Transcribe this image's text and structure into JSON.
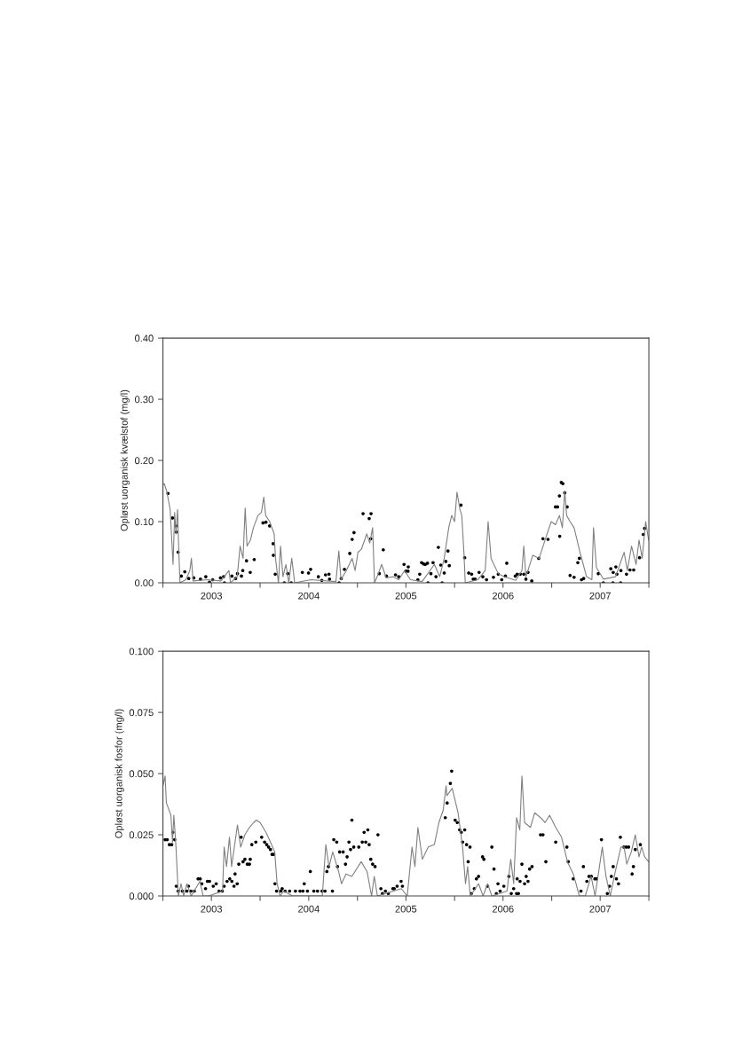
{
  "chart_data": [
    {
      "type": "line",
      "ylabel": "Opløst uorganisk kvælstof (mg/l)",
      "xlim": [
        "2003-01-01",
        "2008-01-01"
      ],
      "xticks": [
        {
          "value": "2003-01-01",
          "label": null
        },
        {
          "value": "2003-07-02",
          "label": "2003"
        },
        {
          "value": "2004-01-01",
          "label": null
        },
        {
          "value": "2004-07-02",
          "label": "2004"
        },
        {
          "value": "2005-01-01",
          "label": null
        },
        {
          "value": "2005-07-02",
          "label": "2005"
        },
        {
          "value": "2006-01-01",
          "label": null
        },
        {
          "value": "2006-07-02",
          "label": "2006"
        },
        {
          "value": "2007-01-01",
          "label": null
        },
        {
          "value": "2007-07-02",
          "label": "2007"
        },
        {
          "value": "2008-01-01",
          "label": null
        }
      ],
      "ylim": [
        0,
        0.4
      ],
      "yticks": [
        {
          "value": 0,
          "label": "0.00"
        },
        {
          "value": 0.1,
          "label": "0.10"
        },
        {
          "value": 0.2,
          "label": "0.20"
        },
        {
          "value": 0.3,
          "label": "0.30"
        },
        {
          "value": 0.4,
          "label": "0.40"
        }
      ],
      "grid": false,
      "legend": false,
      "series": [
        {
          "type": "line",
          "color": "#808080",
          "marker": "none",
          "line_style": "solid",
          "x": [
            "2003-01-01",
            "2003-01-06",
            "2003-01-15",
            "2003-01-28",
            "2003-02-08",
            "2003-02-14",
            "2003-02-19",
            "2003-02-25",
            "2003-03-01",
            "2003-03-06",
            "2003-03-28",
            "2003-04-12",
            "2003-04-18",
            "2003-04-24",
            "2003-06-18",
            "2003-08-07",
            "2003-09-06",
            "2003-09-12",
            "2003-10-07",
            "2003-10-18",
            "2003-10-29",
            "2003-11-06",
            "2003-11-13",
            "2003-11-26",
            "2003-12-07",
            "2003-12-24",
            "2004-01-06",
            "2004-01-15",
            "2004-01-22",
            "2004-02-06",
            "2004-02-23",
            "2004-02-28",
            "2004-03-10",
            "2004-03-18",
            "2004-03-27",
            "2004-04-07",
            "2004-04-18",
            "2004-04-29",
            "2004-05-10",
            "2004-07-10",
            "2004-10-12",
            "2004-10-23",
            "2004-10-31",
            "2004-11-20",
            "2004-12-12",
            "2004-12-23",
            "2005-01-03",
            "2005-01-16",
            "2005-02-05",
            "2005-02-16",
            "2005-02-27",
            "2005-03-06",
            "2005-03-16",
            "2005-04-02",
            "2005-04-19",
            "2005-05-14",
            "2005-06-05",
            "2005-06-27",
            "2005-07-19",
            "2005-09-01",
            "2005-10-17",
            "2005-11-06",
            "2005-11-23",
            "2005-12-10",
            "2005-12-21",
            "2006-01-01",
            "2006-01-10",
            "2006-01-21",
            "2006-01-28",
            "2006-02-05",
            "2006-02-10",
            "2006-03-29",
            "2006-04-26",
            "2006-05-07",
            "2006-05-18",
            "2006-06-14",
            "2006-07-06",
            "2006-08-19",
            "2006-09-11",
            "2006-09-18",
            "2006-09-26",
            "2006-10-22",
            "2006-11-15",
            "2006-12-07",
            "2006-12-30",
            "2007-01-15",
            "2007-01-30",
            "2007-02-10",
            "2007-02-19",
            "2007-02-26",
            "2007-03-11",
            "2007-03-26",
            "2007-04-17",
            "2007-05-12",
            "2007-06-01",
            "2007-06-07",
            "2007-06-18",
            "2007-07-14",
            "2007-08-29",
            "2007-09-30",
            "2007-10-12",
            "2007-10-28",
            "2007-11-14",
            "2007-11-25",
            "2007-12-07",
            "2007-12-20",
            "2007-12-31"
          ],
          "values": [
            0.16,
            0.162,
            0.15,
            0.12,
            0.03,
            0.115,
            0.08,
            0.12,
            0.06,
            0.0,
            0.005,
            0.02,
            0.04,
            0.003,
            0.005,
            0.003,
            0.02,
            0.0,
            0.01,
            0.06,
            0.04,
            0.122,
            0.06,
            0.07,
            0.09,
            0.11,
            0.115,
            0.14,
            0.11,
            0.1,
            0.08,
            0.04,
            0.0,
            0.06,
            0.01,
            0.03,
            0.0,
            0.04,
            0.0,
            0.005,
            0.002,
            0.052,
            0.005,
            0.02,
            0.04,
            0.02,
            0.05,
            0.055,
            0.08,
            0.065,
            0.09,
            0.0,
            0.01,
            0.03,
            0.008,
            0.01,
            0.005,
            0.02,
            0.005,
            0.002,
            0.03,
            0.01,
            0.04,
            0.09,
            0.11,
            0.1,
            0.148,
            0.12,
            0.11,
            0.05,
            0.0,
            0.005,
            0.02,
            0.1,
            0.04,
            0.015,
            0.01,
            0.004,
            0.02,
            0.06,
            0.01,
            0.045,
            0.04,
            0.07,
            0.1,
            0.095,
            0.11,
            0.09,
            0.15,
            0.11,
            0.1,
            0.09,
            0.05,
            0.01,
            0.005,
            0.09,
            0.025,
            0.006,
            0.01,
            0.05,
            0.02,
            0.06,
            0.03,
            0.07,
            0.04,
            0.1,
            0.07
          ]
        },
        {
          "type": "scatter",
          "color": "#000000",
          "marker": "circle",
          "x": [
            "2003-01-20",
            "2003-02-06",
            "2003-02-19",
            "2003-02-20",
            "2003-02-27",
            "2003-03-11",
            "2003-03-24",
            "2003-04-08",
            "2003-04-27",
            "2003-05-22",
            "2003-06-11",
            "2003-06-25",
            "2003-07-07",
            "2003-08-05",
            "2003-08-17",
            "2003-08-20",
            "2003-09-17",
            "2003-10-01",
            "2003-10-08",
            "2003-10-23",
            "2003-10-28",
            "2003-11-11",
            "2003-11-25",
            "2003-12-10",
            "2004-01-12",
            "2004-01-23",
            "2004-02-06",
            "2004-02-19",
            "2004-02-20",
            "2004-02-27",
            "2004-04-01",
            "2004-04-14",
            "2004-04-27",
            "2004-06-08",
            "2004-07-01",
            "2004-07-09",
            "2004-08-07",
            "2004-08-20",
            "2004-09-03",
            "2004-09-16",
            "2004-09-18",
            "2004-10-24",
            "2004-11-01",
            "2004-11-13",
            "2004-12-03",
            "2004-12-12",
            "2004-12-19",
            "2005-01-22",
            "2005-02-14",
            "2005-02-21",
            "2005-02-20",
            "2005-03-24",
            "2005-04-08",
            "2005-04-20",
            "2005-05-24",
            "2005-06-05",
            "2005-06-25",
            "2005-07-02",
            "2005-07-10",
            "2005-07-11",
            "2005-08-16",
            "2005-08-23",
            "2005-08-30",
            "2005-09-06",
            "2005-09-13",
            "2005-09-21",
            "2005-09-23",
            "2005-10-04",
            "2005-10-12",
            "2005-10-23",
            "2005-11-01",
            "2005-11-10",
            "2005-11-15",
            "2005-11-23",
            "2005-11-29",
            "2005-12-07",
            "2005-12-12",
            "2006-01-25",
            "2006-02-08",
            "2006-02-23",
            "2006-03-06",
            "2006-03-12",
            "2006-03-19",
            "2006-04-03",
            "2006-04-17",
            "2006-05-01",
            "2006-05-27",
            "2006-06-14",
            "2006-06-27",
            "2006-07-11",
            "2006-07-16",
            "2006-08-17",
            "2006-08-24",
            "2006-09-05",
            "2006-09-18",
            "2006-09-26",
            "2006-10-04",
            "2006-10-18",
            "2006-11-13",
            "2006-11-29",
            "2006-12-18",
            "2007-01-15",
            "2007-01-23",
            "2007-01-30",
            "2007-01-31",
            "2007-02-06",
            "2007-02-12",
            "2007-02-19",
            "2007-02-28",
            "2007-03-11",
            "2007-03-26",
            "2007-04-09",
            "2007-04-15",
            "2007-04-23",
            "2007-05-01",
            "2007-06-25",
            "2007-07-14",
            "2007-08-11",
            "2007-08-19",
            "2007-08-20",
            "2007-08-30",
            "2007-09-03",
            "2007-09-17",
            "2007-09-18",
            "2007-10-09",
            "2007-10-22",
            "2007-11-05",
            "2007-11-27",
            "2007-12-11",
            "2007-12-16"
          ],
          "values": [
            0.146,
            0.106,
            0.093,
            0.083,
            0.05,
            0.011,
            0.018,
            0.007,
            0.008,
            0.006,
            0.01,
            0.001,
            0.005,
            0.008,
            0.01,
            0.0,
            0.011,
            0.007,
            0.015,
            0.011,
            0.02,
            0.036,
            0.017,
            0.038,
            0.098,
            0.099,
            0.093,
            0.064,
            0.045,
            0.014,
            0.0,
            0.015,
            0.0,
            0.017,
            0.016,
            0.022,
            0.01,
            0.004,
            0.013,
            0.014,
            0.006,
            0.0,
            0.007,
            0.022,
            0.048,
            0.071,
            0.082,
            0.113,
            0.105,
            0.113,
            0.072,
            0.015,
            0.054,
            0.011,
            0.013,
            0.01,
            0.03,
            0.019,
            0.019,
            0.026,
            0.005,
            0.014,
            0.033,
            0.031,
            0.03,
            0.032,
            0.0,
            0.015,
            0.033,
            0.01,
            0.058,
            0.029,
            0.0,
            0.016,
            0.035,
            0.052,
            0.028,
            0.127,
            0.041,
            0.016,
            0.014,
            0.006,
            0.006,
            0.017,
            0.01,
            0.005,
            0.009,
            0.014,
            0.005,
            0.011,
            0.032,
            0.011,
            0.014,
            0.014,
            0.014,
            0.006,
            0.017,
            0.003,
            0.04,
            0.072,
            0.071,
            0.124,
            0.124,
            0.142,
            0.076,
            0.164,
            0.162,
            0.147,
            0.124,
            0.012,
            0.009,
            0.033,
            0.04,
            0.005,
            0.007,
            0.015,
            0.0,
            0.023,
            0.0,
            0.017,
            0.026,
            0.014,
            0.0,
            0.02,
            0.014,
            0.021,
            0.021,
            0.041,
            0.079,
            0.089
          ]
        }
      ]
    },
    {
      "type": "line",
      "ylabel": "Opløst uorganisk fosfor (mg/l)",
      "xlim": [
        "2003-01-01",
        "2008-01-01"
      ],
      "xticks": [
        {
          "value": "2003-01-01",
          "label": null
        },
        {
          "value": "2003-07-02",
          "label": "2003"
        },
        {
          "value": "2004-01-01",
          "label": null
        },
        {
          "value": "2004-07-02",
          "label": "2004"
        },
        {
          "value": "2005-01-01",
          "label": null
        },
        {
          "value": "2005-07-02",
          "label": "2005"
        },
        {
          "value": "2006-01-01",
          "label": null
        },
        {
          "value": "2006-07-02",
          "label": "2006"
        },
        {
          "value": "2007-01-01",
          "label": null
        },
        {
          "value": "2007-07-02",
          "label": "2007"
        },
        {
          "value": "2008-01-01",
          "label": null
        }
      ],
      "ylim": [
        0,
        0.1
      ],
      "yticks": [
        {
          "value": 0,
          "label": "0.000"
        },
        {
          "value": 0.025,
          "label": "0.025"
        },
        {
          "value": 0.05,
          "label": "0.050"
        },
        {
          "value": 0.075,
          "label": "0.075"
        },
        {
          "value": 0.1,
          "label": "0.100"
        }
      ],
      "grid": false,
      "legend": false,
      "series": [
        {
          "type": "line",
          "color": "#808080",
          "marker": "none",
          "line_style": "solid",
          "x": [
            "2003-01-01",
            "2003-01-09",
            "2003-01-14",
            "2003-01-31",
            "2003-02-06",
            "2003-02-11",
            "2003-02-19",
            "2003-02-28",
            "2003-03-10",
            "2003-03-20",
            "2003-04-01",
            "2003-04-17",
            "2003-05-20",
            "2003-06-01",
            "2003-06-22",
            "2003-08-13",
            "2003-08-19",
            "2003-08-28",
            "2003-09-08",
            "2003-09-16",
            "2003-10-08",
            "2003-10-20",
            "2003-11-05",
            "2003-11-22",
            "2003-12-08",
            "2003-12-18",
            "2004-01-01",
            "2004-01-23",
            "2004-02-09",
            "2004-02-25",
            "2004-03-05",
            "2004-03-16",
            "2004-03-30",
            "2004-05-02",
            "2004-08-22",
            "2004-09-04",
            "2004-09-16",
            "2004-09-30",
            "2004-10-22",
            "2004-11-02",
            "2004-11-19",
            "2004-12-11",
            "2005-01-15",
            "2005-02-06",
            "2005-02-23",
            "2005-03-05",
            "2005-03-17",
            "2005-06-15",
            "2005-07-07",
            "2005-07-25",
            "2005-08-05",
            "2005-08-16",
            "2005-09-02",
            "2005-09-24",
            "2005-10-17",
            "2005-11-03",
            "2005-11-19",
            "2005-11-30",
            "2005-12-03",
            "2005-12-23",
            "2006-01-03",
            "2006-01-14",
            "2006-01-31",
            "2006-02-11",
            "2006-02-19",
            "2006-03-01",
            "2006-04-01",
            "2006-04-18",
            "2006-05-05",
            "2006-05-21",
            "2006-07-17",
            "2006-07-31",
            "2006-08-11",
            "2006-08-22",
            "2006-09-03",
            "2006-09-11",
            "2006-09-21",
            "2006-10-13",
            "2006-10-29",
            "2006-11-20",
            "2006-12-07",
            "2006-12-24",
            "2007-01-16",
            "2007-02-07",
            "2007-03-01",
            "2007-03-23",
            "2007-04-15",
            "2007-05-07",
            "2007-05-29",
            "2007-06-13",
            "2007-07-10",
            "2007-07-24",
            "2007-08-09",
            "2007-08-26",
            "2007-09-18",
            "2007-09-30",
            "2007-10-10",
            "2007-10-27",
            "2007-11-11",
            "2007-11-25",
            "2007-12-05",
            "2007-12-16",
            "2007-12-31"
          ],
          "values": [
            0.045,
            0.049,
            0.038,
            0.033,
            0.022,
            0.033,
            0.02,
            0.0,
            0.005,
            0.0,
            0.005,
            0.0,
            0.006,
            0.0,
            0.0,
            0.002,
            0.02,
            0.012,
            0.024,
            0.012,
            0.029,
            0.02,
            0.025,
            0.028,
            0.03,
            0.031,
            0.03,
            0.026,
            0.022,
            0.018,
            0.005,
            0.0,
            0.002,
            0.0,
            0.0,
            0.021,
            0.012,
            0.018,
            0.01,
            0.005,
            0.009,
            0.008,
            0.014,
            0.01,
            0.0,
            0.008,
            0.0,
            0.003,
            0.0,
            0.02,
            0.012,
            0.028,
            0.015,
            0.02,
            0.021,
            0.03,
            0.035,
            0.045,
            0.041,
            0.044,
            0.039,
            0.034,
            0.02,
            0.005,
            0.012,
            0.0,
            0.005,
            0.0,
            0.005,
            0.0,
            0.002,
            0.015,
            0.005,
            0.032,
            0.027,
            0.049,
            0.03,
            0.028,
            0.034,
            0.032,
            0.03,
            0.033,
            0.028,
            0.024,
            0.014,
            0.009,
            0.0,
            0.0,
            0.008,
            0.0,
            0.02,
            0.008,
            0.0,
            0.009,
            0.02,
            0.02,
            0.013,
            0.018,
            0.025,
            0.016,
            0.02,
            0.016,
            0.014
          ]
        },
        {
          "type": "scatter",
          "color": "#000000",
          "marker": "circle",
          "x": [
            "2003-01-09",
            "2003-01-17",
            "2003-01-25",
            "2003-02-03",
            "2003-02-07",
            "2003-02-14",
            "2003-02-20",
            "2003-02-27",
            "2003-03-15",
            "2003-04-01",
            "2003-04-07",
            "2003-04-16",
            "2003-04-29",
            "2003-05-13",
            "2003-05-21",
            "2003-05-27",
            "2003-06-10",
            "2003-06-17",
            "2003-06-25",
            "2003-07-09",
            "2003-07-20",
            "2003-07-31",
            "2003-08-12",
            "2003-08-19",
            "2003-08-30",
            "2003-09-09",
            "2003-09-17",
            "2003-09-25",
            "2003-09-29",
            "2003-10-07",
            "2003-10-13",
            "2003-10-22",
            "2003-10-29",
            "2003-11-05",
            "2003-11-14",
            "2003-11-22",
            "2003-11-25",
            "2003-12-01",
            "2003-12-16",
            "2004-01-07",
            "2004-01-18",
            "2004-01-26",
            "2004-02-02",
            "2004-02-09",
            "2004-02-15",
            "2004-02-21",
            "2004-02-26",
            "2004-03-03",
            "2004-03-19",
            "2004-03-24",
            "2004-04-04",
            "2004-04-21",
            "2004-05-13",
            "2004-05-30",
            "2004-06-10",
            "2004-06-15",
            "2004-06-27",
            "2004-07-08",
            "2004-07-21",
            "2004-08-04",
            "2004-08-21",
            "2004-09-01",
            "2004-09-08",
            "2004-09-14",
            "2004-09-29",
            "2004-10-04",
            "2004-10-15",
            "2004-10-18",
            "2004-10-26",
            "2004-11-08",
            "2004-11-17",
            "2004-11-23",
            "2004-11-30",
            "2004-12-06",
            "2004-12-11",
            "2004-12-18",
            "2005-01-06",
            "2005-01-19",
            "2005-01-26",
            "2005-02-01",
            "2005-02-09",
            "2005-02-14",
            "2005-02-20",
            "2005-02-27",
            "2005-03-08",
            "2005-03-19",
            "2005-03-30",
            "2005-04-05",
            "2005-04-16",
            "2005-04-27",
            "2005-05-14",
            "2005-05-19",
            "2005-05-30",
            "2005-06-14",
            "2005-06-19",
            "2005-11-27",
            "2005-12-04",
            "2005-12-16",
            "2005-12-21",
            "2006-01-03",
            "2006-01-11",
            "2006-01-20",
            "2006-01-26",
            "2006-01-31",
            "2006-02-08",
            "2006-02-15",
            "2006-02-21",
            "2006-02-28",
            "2006-03-05",
            "2006-03-16",
            "2006-03-24",
            "2006-04-01",
            "2006-04-16",
            "2006-04-21",
            "2006-05-05",
            "2006-05-21",
            "2006-05-29",
            "2006-06-07",
            "2006-06-13",
            "2006-06-21",
            "2006-07-05",
            "2006-07-24",
            "2006-08-02",
            "2006-08-11",
            "2006-08-22",
            "2006-08-24",
            "2006-08-29",
            "2006-09-04",
            "2006-09-11",
            "2006-09-21",
            "2006-09-27",
            "2006-10-04",
            "2006-10-10",
            "2006-10-19",
            "2006-11-20",
            "2006-11-29",
            "2006-12-10",
            "2007-01-16",
            "2007-02-27",
            "2007-03-04",
            "2007-03-23",
            "2007-04-21",
            "2007-04-30",
            "2007-05-13",
            "2007-05-21",
            "2007-05-30",
            "2007-06-12",
            "2007-06-18",
            "2007-07-07",
            "2007-07-29",
            "2007-08-06",
            "2007-08-13",
            "2007-08-20",
            "2007-09-01",
            "2007-09-09",
            "2007-09-16",
            "2007-09-29",
            "2007-10-08",
            "2007-10-17",
            "2007-10-30",
            "2007-11-04",
            "2007-11-11",
            "2007-11-30"
          ],
          "values": [
            0.023,
            0.023,
            0.021,
            0.021,
            0.026,
            0.023,
            0.004,
            0.002,
            0.002,
            0.002,
            0.004,
            0.002,
            0.002,
            0.007,
            0.007,
            0.005,
            0.003,
            0.006,
            0.006,
            0.004,
            0.005,
            0.002,
            0.002,
            0.004,
            0.006,
            0.007,
            0.006,
            0.004,
            0.009,
            0.005,
            0.013,
            0.024,
            0.014,
            0.015,
            0.013,
            0.013,
            0.015,
            0.021,
            0.022,
            0.024,
            0.022,
            0.021,
            0.02,
            0.019,
            0.017,
            0.017,
            0.005,
            0.002,
            0.002,
            0.003,
            0.002,
            0.002,
            0.002,
            0.002,
            0.002,
            0.005,
            0.002,
            0.01,
            0.002,
            0.002,
            0.002,
            0.002,
            0.01,
            0.012,
            0.002,
            0.023,
            0.022,
            0.012,
            0.018,
            0.018,
            0.013,
            0.016,
            0.022,
            0.019,
            0.031,
            0.02,
            0.02,
            0.022,
            0.026,
            0.022,
            0.027,
            0.021,
            0.015,
            0.013,
            0.012,
            0.025,
            0.003,
            0.001,
            0.002,
            0.001,
            0.003,
            0.003,
            0.004,
            0.006,
            0.004,
            0.032,
            0.038,
            0.046,
            0.051,
            0.031,
            0.03,
            0.027,
            0.026,
            0.022,
            0.027,
            0.021,
            0.014,
            0.02,
            0.001,
            0.003,
            0.007,
            0.008,
            0.016,
            0.015,
            0.004,
            0.02,
            0.011,
            0.001,
            0.005,
            0.002,
            0.004,
            0.008,
            0.001,
            0.003,
            0.001,
            0.007,
            0.001,
            0.006,
            0.013,
            0.005,
            0.008,
            0.006,
            0.011,
            0.012,
            0.025,
            0.025,
            0.014,
            0.022,
            0.02,
            0.014,
            0.007,
            0.002,
            0.012,
            0.006,
            0.008,
            0.008,
            0.007,
            0.007,
            0.023,
            0.001,
            0.004,
            0.008,
            0.012,
            0.007,
            0.005,
            0.024,
            0.02,
            0.02,
            0.02,
            0.009,
            0.012,
            0.019,
            0.021
          ]
        }
      ]
    }
  ]
}
